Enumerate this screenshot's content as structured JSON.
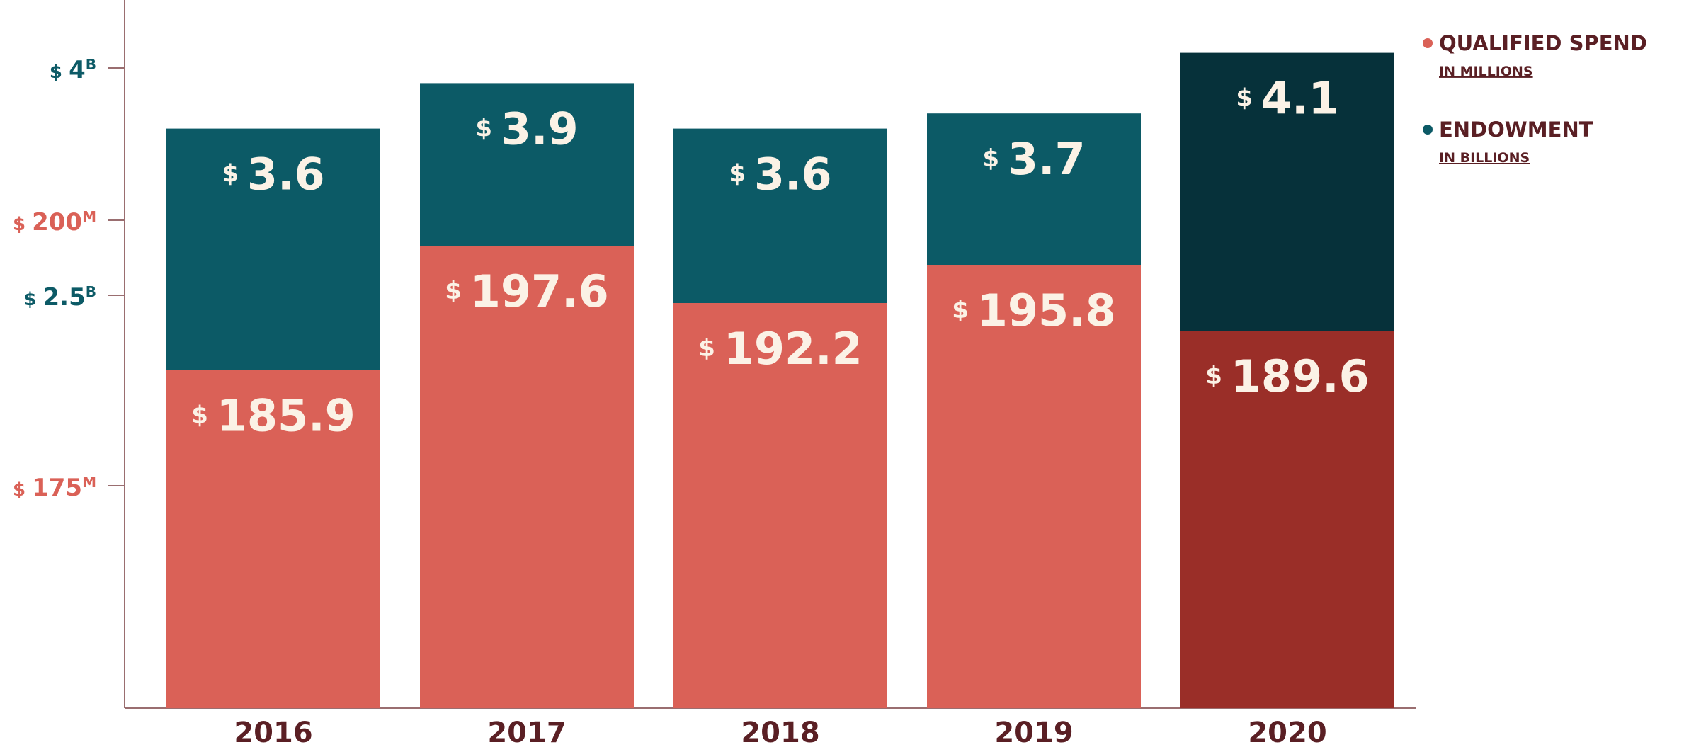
{
  "chart_data": {
    "type": "bar",
    "stacked": true,
    "categories": [
      "2016",
      "2017",
      "2018",
      "2019",
      "2020"
    ],
    "series": [
      {
        "name": "QUALIFIED SPEND",
        "unit_note": "IN MILLIONS",
        "values": [
          185.9,
          197.6,
          192.2,
          195.8,
          189.6
        ],
        "value_labels": [
          "185.9",
          "197.6",
          "192.2",
          "195.8",
          "189.6"
        ],
        "color": "#da6157",
        "highlight_color": "#9a2e28",
        "axis": {
          "ticks": [
            {
              "value": 200,
              "label": "200",
              "suffix": "M"
            },
            {
              "value": 175,
              "label": "175",
              "suffix": "M"
            }
          ]
        }
      },
      {
        "name": "ENDOWMENT",
        "unit_note": "IN BILLIONS",
        "values": [
          3.6,
          3.9,
          3.6,
          3.7,
          4.1
        ],
        "value_labels": [
          "3.6",
          "3.9",
          "3.6",
          "3.7",
          "4.1"
        ],
        "color": "#0c5a66",
        "highlight_color": "#06313a",
        "axis": {
          "ticks": [
            {
              "value": 4,
              "label": "4",
              "suffix": "B"
            },
            {
              "value": 2.5,
              "label": "2.5",
              "suffix": "B"
            }
          ]
        }
      }
    ],
    "highlight_category": "2020",
    "currency_symbol": "$",
    "legend_position": "top-right",
    "grid": false
  },
  "colors": {
    "spend_axis": "#da6157",
    "endowment_axis": "#0c5a66",
    "text_dark": "#5a1f24",
    "axis_line": "#9a6e70",
    "label_light": "#fbf2e6"
  }
}
